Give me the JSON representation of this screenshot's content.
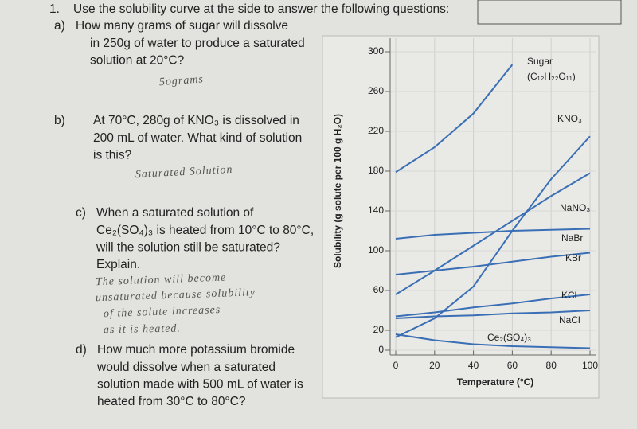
{
  "question_number": "1.",
  "instruction": "Use the solubility curve at the side to answer the following questions:",
  "questions": [
    {
      "label": "a)",
      "lines": [
        "How many grams of sugar will dissolve",
        "in 250g of water to produce a saturated",
        "solution at 20°C?"
      ],
      "answer_lines": [
        "5ograms"
      ]
    },
    {
      "label": "b)",
      "lines": [
        "At 70°C, 280g of KNO₃ is dissolved in",
        "200 mL of water. What kind of solution",
        "is this?"
      ],
      "answer_lines": [
        "Saturated Solution"
      ]
    },
    {
      "label": "c)",
      "lines": [
        "When a saturated solution of",
        "Ce₂(SO₄)₃ is heated from 10°C to 80°C,",
        "will the solution still be saturated?",
        "Explain."
      ],
      "answer_lines": [
        "The solution will become",
        "unsaturated because solubility",
        "of the solute increases",
        "as it is heated."
      ]
    },
    {
      "label": "d)",
      "lines": [
        "How much more potassium bromide",
        "would dissolve when a saturated",
        "solution made with 500 mL of water is",
        "heated from 30°C to 80°C?"
      ],
      "answer_lines": []
    }
  ],
  "chart": {
    "type": "line",
    "x_label": "Temperature (°C)",
    "y_label": "Solubility (g solute per 100 g H₂O)",
    "x": [
      0,
      20,
      40,
      60,
      80,
      100
    ],
    "xlim": [
      0,
      100
    ],
    "ylim": [
      0,
      300
    ],
    "xticks": [
      0,
      20,
      40,
      60,
      80,
      100
    ],
    "yticks": [
      0,
      20,
      60,
      100,
      140,
      180,
      220,
      260,
      300
    ],
    "grid": true,
    "series": [
      {
        "name": "Sugar",
        "formula": "(C₁₂H₂₂O₁₁)",
        "color": "#3a6fb5",
        "values": [
          179,
          204,
          238,
          287,
          null,
          null
        ]
      },
      {
        "name": "KNO₃",
        "color": "#3a6fb5",
        "values": [
          13,
          32,
          64,
          120,
          172,
          215
        ]
      },
      {
        "name": "NaNO₃",
        "color": "#3a6fb5",
        "values": [
          56,
          80,
          105,
          130,
          155,
          178
        ]
      },
      {
        "name": "NaBr",
        "color": "#3a6fb5",
        "values": [
          112,
          116,
          118,
          120,
          121,
          122
        ]
      },
      {
        "name": "KBr",
        "color": "#3a6fb5",
        "values": [
          76,
          80,
          84,
          89,
          94,
          98
        ]
      },
      {
        "name": "KCl",
        "color": "#3a6fb5",
        "values": [
          34,
          38,
          43,
          47,
          52,
          56
        ]
      },
      {
        "name": "NaCl",
        "color": "#3a6fb5",
        "values": [
          32,
          34,
          35,
          37,
          38,
          40
        ]
      },
      {
        "name": "Ce₂(SO₄)₃",
        "color": "#3a6fb5",
        "values": [
          16,
          10,
          6,
          4,
          3,
          2
        ]
      }
    ]
  }
}
